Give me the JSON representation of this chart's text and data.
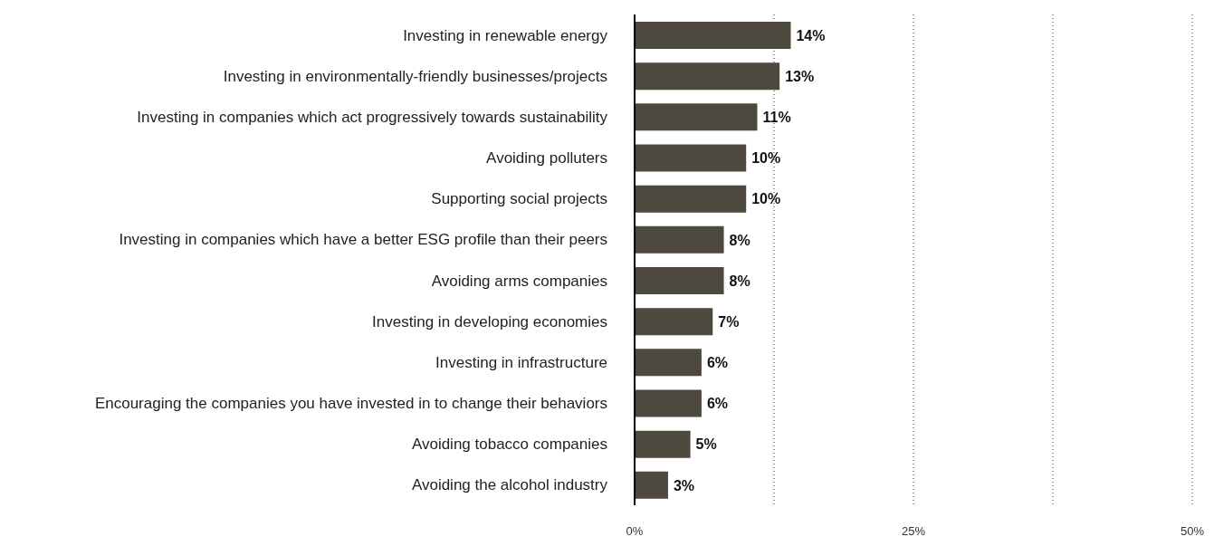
{
  "chart_data": {
    "type": "bar",
    "orientation": "horizontal",
    "categories": [
      "Investing in renewable energy",
      "Investing in environmentally-friendly businesses/projects",
      "Investing in companies which act progressively towards sustainability",
      "Avoiding polluters",
      "Supporting social projects",
      "Investing in companies which have a better ESG profile than their peers",
      "Avoiding arms companies",
      "Investing in developing economies",
      "Investing in infrastructure",
      "Encouraging the companies you have invested in to change their behaviors",
      "Avoiding tobacco companies",
      "Avoiding the alcohol industry"
    ],
    "values": [
      14,
      13,
      11,
      10,
      10,
      8,
      8,
      7,
      6,
      6,
      5,
      3
    ],
    "value_labels": [
      "14%",
      "13%",
      "11%",
      "10%",
      "10%",
      "8%",
      "8%",
      "7%",
      "6%",
      "6%",
      "5%",
      "3%"
    ],
    "color": "#4d493e",
    "xlim": [
      0,
      50
    ],
    "xticks": [
      {
        "value": 0,
        "label": "0%"
      },
      {
        "value": 12.5,
        "label": null
      },
      {
        "value": 25,
        "label": "25%"
      },
      {
        "value": 37.5,
        "label": null
      },
      {
        "value": 50,
        "label": "50%"
      }
    ],
    "grid": "x"
  }
}
